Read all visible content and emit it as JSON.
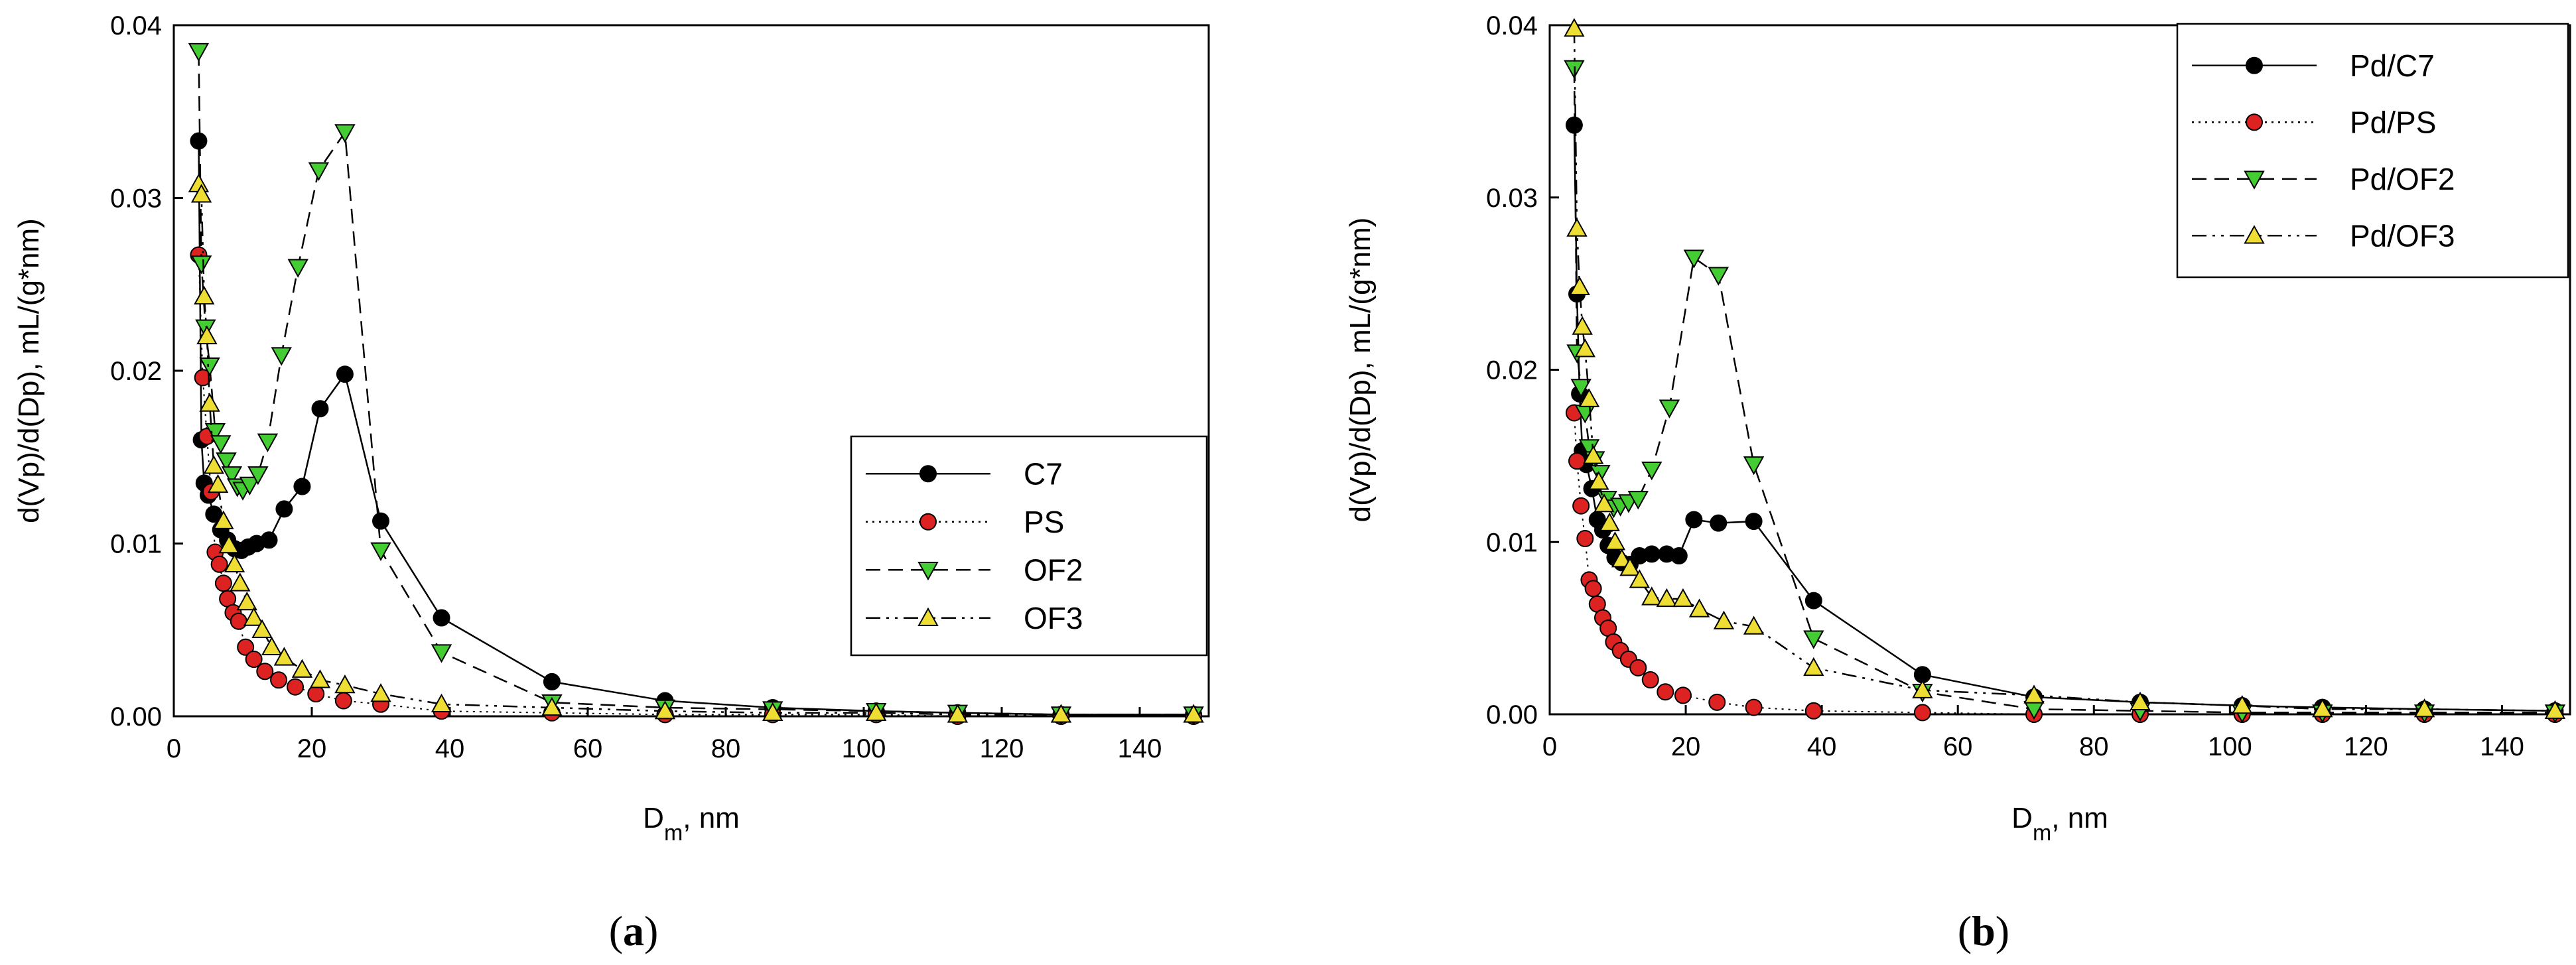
{
  "chart_data": [
    {
      "type": "scatter",
      "panel_caption": "(a)",
      "caption_letter": "a",
      "xlabel": "D",
      "xlabel_sub": "m",
      "xlabel_suffix": ", nm",
      "ylabel": "d(Vp)/d(Dp), mL/(g*nm)",
      "xlim": [
        0,
        150
      ],
      "ylim": [
        0,
        0.04
      ],
      "xticks": [
        0,
        20,
        40,
        60,
        80,
        100,
        120,
        140
      ],
      "yticks": [
        0.0,
        0.01,
        0.02,
        0.03,
        0.04
      ],
      "ytick_labels": [
        "0.00",
        "0.01",
        "0.02",
        "0.03",
        "0.04"
      ],
      "legend_position": "center-right",
      "series": [
        {
          "name": "C7",
          "marker": "circle",
          "color": "#000000",
          "dash": "solid",
          "x": [
            3.6,
            4.0,
            4.4,
            5.0,
            5.8,
            6.8,
            7.8,
            8.8,
            9.8,
            10.8,
            12.0,
            13.8,
            16.0,
            18.6,
            21.2,
            24.8,
            30.0,
            38.8,
            54.8,
            71.2,
            86.8,
            101.8,
            113.6,
            128.6,
            147.8
          ],
          "y": [
            0.0333,
            0.016,
            0.0135,
            0.0128,
            0.0117,
            0.0108,
            0.0102,
            0.0097,
            0.0096,
            0.0098,
            0.01,
            0.0102,
            0.012,
            0.0133,
            0.0178,
            0.0198,
            0.0113,
            0.0057,
            0.002,
            0.0009,
            0.0005,
            0.0003,
            0.0002,
            0.0001,
            0.0001
          ]
        },
        {
          "name": "PS",
          "marker": "circle",
          "color": "#dd2222",
          "dash": "dotted",
          "x": [
            3.6,
            4.2,
            4.8,
            5.4,
            6.0,
            6.6,
            7.2,
            7.8,
            8.6,
            9.4,
            10.4,
            11.6,
            13.2,
            15.2,
            17.6,
            20.6,
            24.6,
            30.0,
            38.8,
            54.8,
            71.2,
            86.8,
            101.8,
            113.6,
            128.6,
            147.8
          ],
          "y": [
            0.0267,
            0.0196,
            0.0162,
            0.013,
            0.0095,
            0.0088,
            0.0077,
            0.0068,
            0.006,
            0.0055,
            0.004,
            0.0033,
            0.0026,
            0.0021,
            0.0017,
            0.0013,
            0.0009,
            0.0007,
            0.0003,
            0.0002,
            0.0001,
            0.0001,
            0.0001,
            0.0,
            0.0,
            0.0
          ]
        },
        {
          "name": "OF2",
          "marker": "triangle-down",
          "color": "#44cc33",
          "dash": "dashed",
          "x": [
            3.6,
            4.0,
            4.6,
            5.2,
            6.0,
            6.8,
            7.6,
            8.4,
            9.2,
            10.0,
            11.0,
            12.2,
            13.6,
            15.6,
            18.0,
            21.0,
            24.8,
            30.0,
            38.8,
            54.8,
            71.2,
            86.8,
            101.8,
            113.6,
            128.6,
            147.8
          ],
          "y": [
            0.0385,
            0.0262,
            0.0225,
            0.0203,
            0.0165,
            0.0158,
            0.0148,
            0.014,
            0.0133,
            0.0131,
            0.0134,
            0.014,
            0.0159,
            0.0209,
            0.026,
            0.0316,
            0.0338,
            0.0096,
            0.0037,
            0.0008,
            0.0005,
            0.0004,
            0.0003,
            0.0002,
            0.0001,
            0.0001
          ]
        },
        {
          "name": "OF3",
          "marker": "triangle-up",
          "color": "#eedd33",
          "dash": "dash-dot-dot",
          "x": [
            3.6,
            4.0,
            4.4,
            4.8,
            5.2,
            5.8,
            6.4,
            7.2,
            8.0,
            8.8,
            9.6,
            10.6,
            11.6,
            12.8,
            14.2,
            16.0,
            18.6,
            21.2,
            24.8,
            30.0,
            38.8,
            54.8,
            71.2,
            86.8,
            101.8,
            113.6,
            128.6,
            147.8
          ],
          "y": [
            0.0308,
            0.0302,
            0.0243,
            0.022,
            0.0181,
            0.0145,
            0.0134,
            0.0113,
            0.0099,
            0.0088,
            0.0077,
            0.0066,
            0.0057,
            0.005,
            0.004,
            0.0034,
            0.0027,
            0.0021,
            0.0018,
            0.0013,
            0.0007,
            0.0005,
            0.0003,
            0.0002,
            0.0002,
            0.0001,
            0.0001,
            0.0001
          ]
        }
      ]
    },
    {
      "type": "scatter",
      "panel_caption": "(b)",
      "caption_letter": "b",
      "xlabel": "D",
      "xlabel_sub": "m",
      "xlabel_suffix": ", nm",
      "ylabel": "d(Vp)/d(Dp), mL/(g*nm)",
      "xlim": [
        0,
        150
      ],
      "ylim": [
        0,
        0.04
      ],
      "xticks": [
        0,
        20,
        40,
        60,
        80,
        100,
        120,
        140
      ],
      "yticks": [
        0.0,
        0.01,
        0.02,
        0.03,
        0.04
      ],
      "ytick_labels": [
        "0.00",
        "0.01",
        "0.02",
        "0.03",
        "0.04"
      ],
      "legend_position": "top-right",
      "series": [
        {
          "name": "Pd/C7",
          "marker": "circle",
          "color": "#000000",
          "dash": "solid",
          "x": [
            3.6,
            4.0,
            4.4,
            4.8,
            5.4,
            6.2,
            7.0,
            7.8,
            8.6,
            9.6,
            10.6,
            11.8,
            13.2,
            15.0,
            17.2,
            19.0,
            21.2,
            24.8,
            30.0,
            38.8,
            54.8,
            71.2,
            86.8,
            101.8,
            113.6,
            128.6,
            147.8
          ],
          "y": [
            0.0342,
            0.0244,
            0.0186,
            0.0153,
            0.0145,
            0.0131,
            0.0113,
            0.0107,
            0.0098,
            0.0091,
            0.0088,
            0.0087,
            0.0092,
            0.0093,
            0.0093,
            0.0092,
            0.0113,
            0.0111,
            0.0112,
            0.0066,
            0.0023,
            0.001,
            0.0007,
            0.0005,
            0.0004,
            0.0003,
            0.0002
          ]
        },
        {
          "name": "Pd/PS",
          "marker": "circle",
          "color": "#dd2222",
          "dash": "dotted",
          "x": [
            3.6,
            4.0,
            4.6,
            5.2,
            5.8,
            6.4,
            7.0,
            7.8,
            8.6,
            9.4,
            10.4,
            11.6,
            13.0,
            14.8,
            17.0,
            19.6,
            24.6,
            30.0,
            38.8,
            54.8,
            71.2,
            86.8,
            101.8,
            113.6,
            128.6,
            147.8
          ],
          "y": [
            0.0175,
            0.0147,
            0.0121,
            0.0102,
            0.0078,
            0.0073,
            0.0064,
            0.0056,
            0.005,
            0.0042,
            0.0037,
            0.0032,
            0.0027,
            0.002,
            0.0013,
            0.0011,
            0.0007,
            0.0004,
            0.0002,
            0.0001,
            0.0,
            0.0,
            0.0,
            0.0,
            0.0,
            0.0
          ]
        },
        {
          "name": "Pd/OF2",
          "marker": "triangle-down",
          "color": "#44cc33",
          "dash": "dashed",
          "x": [
            3.6,
            4.0,
            4.6,
            5.2,
            5.8,
            6.6,
            7.4,
            8.4,
            9.4,
            10.4,
            11.6,
            13.0,
            15.0,
            17.6,
            21.2,
            24.8,
            30.0,
            38.8,
            54.8,
            71.2,
            86.8,
            101.8,
            113.6,
            128.6,
            147.8
          ],
          "y": [
            0.0375,
            0.021,
            0.019,
            0.0175,
            0.0155,
            0.0148,
            0.014,
            0.0125,
            0.012,
            0.0121,
            0.0123,
            0.0125,
            0.0142,
            0.0178,
            0.0265,
            0.0255,
            0.0145,
            0.0044,
            0.0013,
            0.0003,
            0.0002,
            0.0001,
            0.0001,
            0.0001,
            0.0001
          ]
        },
        {
          "name": "Pd/OF3",
          "marker": "triangle-up",
          "color": "#eedd33",
          "dash": "dash-dot-dot",
          "x": [
            3.6,
            4.0,
            4.4,
            4.8,
            5.2,
            5.8,
            6.4,
            7.2,
            8.0,
            8.8,
            9.6,
            10.6,
            11.8,
            13.2,
            15.0,
            17.2,
            19.6,
            22.0,
            25.6,
            30.0,
            38.8,
            54.8,
            71.2,
            86.8,
            101.8,
            113.6,
            128.6,
            147.8
          ],
          "y": [
            0.0398,
            0.0282,
            0.0248,
            0.0225,
            0.0212,
            0.0183,
            0.015,
            0.0135,
            0.0122,
            0.0111,
            0.01,
            0.009,
            0.0085,
            0.0078,
            0.0068,
            0.0067,
            0.0067,
            0.0061,
            0.0054,
            0.0051,
            0.0027,
            0.0014,
            0.0011,
            0.0007,
            0.0005,
            0.0003,
            0.0003,
            0.0002
          ]
        }
      ]
    }
  ]
}
